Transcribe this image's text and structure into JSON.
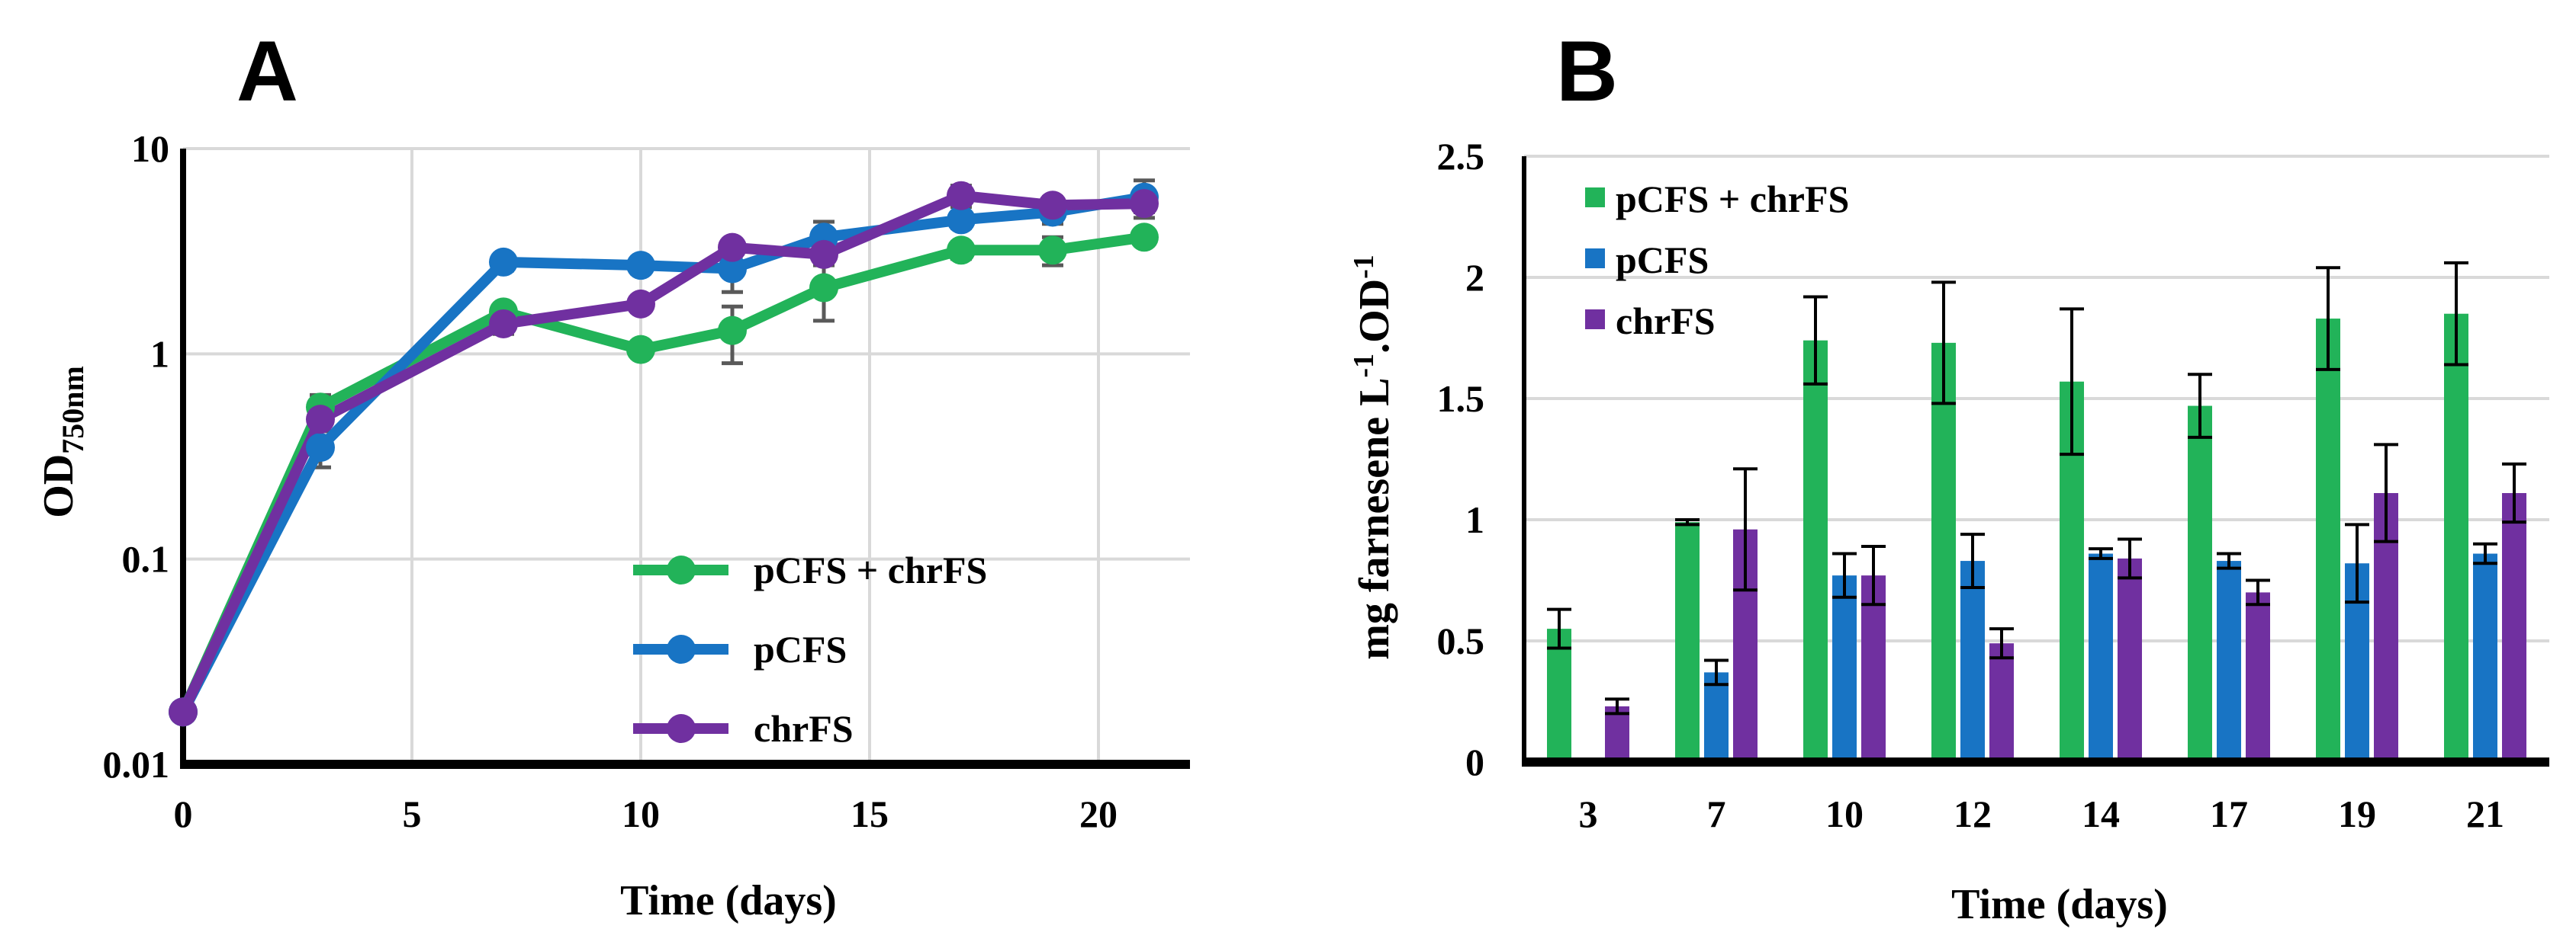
{
  "panels": {
    "left_letter": "A",
    "right_letter": "B"
  },
  "colors": {
    "green": "#22b359",
    "blue": "#1874c4",
    "purple": "#7030a0",
    "grid": "#d9d9d9",
    "error": "#000000",
    "error_left": "#595959"
  },
  "chart_data": [
    {
      "type": "line",
      "panel": "A",
      "xlabel": "Time (days)",
      "ylabel": "OD",
      "ylabel_sub": "750nm",
      "yscale": "log",
      "xlim": [
        0,
        22
      ],
      "ylim": [
        0.01,
        10
      ],
      "xticks": [
        0,
        5,
        10,
        15,
        20
      ],
      "xtick_labels": [
        "0",
        "5",
        "10",
        "15",
        "20"
      ],
      "yticks": [
        0.01,
        0.1,
        1,
        10
      ],
      "ytick_labels": [
        "0.01",
        "0.1",
        "1",
        "10"
      ],
      "grid": true,
      "legend_position": "bottom-right",
      "series": [
        {
          "name": "pCFS + chrFS",
          "color": "#22b359",
          "x": [
            0,
            3,
            7,
            10,
            12,
            14,
            17,
            19,
            21
          ],
          "y": [
            0.018,
            0.55,
            1.6,
            1.05,
            1.3,
            2.1,
            3.2,
            3.2,
            3.7
          ],
          "err": [
            0,
            0.08,
            0.15,
            0.08,
            0.4,
            0.65,
            0.3,
            0.5,
            0.2
          ]
        },
        {
          "name": "pCFS",
          "color": "#1874c4",
          "x": [
            0,
            3,
            7,
            10,
            12,
            14,
            17,
            19,
            21
          ],
          "y": [
            0.018,
            0.35,
            2.8,
            2.7,
            2.6,
            3.7,
            4.5,
            4.9,
            5.8
          ],
          "err": [
            0,
            0.07,
            0.25,
            0.2,
            0.6,
            0.7,
            0.4,
            0.6,
            1.2
          ]
        },
        {
          "name": "chrFS",
          "color": "#7030a0",
          "x": [
            0,
            3,
            7,
            10,
            12,
            14,
            17,
            19,
            21
          ],
          "y": [
            0.018,
            0.48,
            1.4,
            1.75,
            3.3,
            3.05,
            5.9,
            5.3,
            5.4
          ],
          "err": [
            0,
            0.06,
            0.15,
            0.15,
            0.3,
            0.35,
            0.7,
            0.5,
            0.5
          ]
        }
      ]
    },
    {
      "type": "bar",
      "panel": "B",
      "xlabel": "Time (days)",
      "ylabel": "mg farnesene L",
      "ylabel_sup1": "-1",
      "ylabel_mid": ".OD",
      "ylabel_sup2": "-1",
      "ylim": [
        0,
        2.5
      ],
      "yticks": [
        0,
        0.5,
        1,
        1.5,
        2,
        2.5
      ],
      "ytick_labels": [
        "0",
        "0.5",
        "1",
        "1.5",
        "2",
        "2.5"
      ],
      "categories": [
        "3",
        "7",
        "10",
        "12",
        "14",
        "17",
        "19",
        "21"
      ],
      "grid": true,
      "legend_position": "top-left",
      "series": [
        {
          "name": "pCFS + chrFS",
          "color": "#22b359",
          "values": [
            0.55,
            0.99,
            1.74,
            1.73,
            1.57,
            1.47,
            1.83,
            1.85
          ],
          "err": [
            0.08,
            0.01,
            0.18,
            0.25,
            0.3,
            0.13,
            0.21,
            0.21
          ]
        },
        {
          "name": "pCFS",
          "color": "#1874c4",
          "values": [
            null,
            0.37,
            0.77,
            0.83,
            0.86,
            0.83,
            0.82,
            0.86
          ],
          "err": [
            0,
            0.05,
            0.09,
            0.11,
            0.02,
            0.03,
            0.16,
            0.04
          ]
        },
        {
          "name": "chrFS",
          "color": "#7030a0",
          "values": [
            0.23,
            0.96,
            0.77,
            0.49,
            0.84,
            0.7,
            1.11,
            1.11
          ],
          "err": [
            0.03,
            0.25,
            0.12,
            0.06,
            0.08,
            0.05,
            0.2,
            0.12
          ]
        }
      ]
    }
  ]
}
